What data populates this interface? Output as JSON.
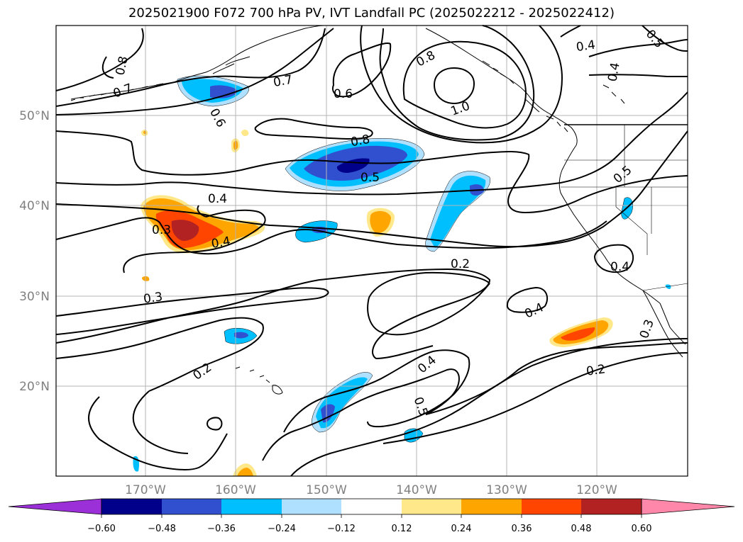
{
  "title": "2025021900 F072 700 hPa PV, IVT Landfall PC (2025022212 - 2025022412)",
  "lat_labels": [
    "50°N",
    "40°N",
    "30°N",
    "20°N"
  ],
  "lon_labels": [
    "170°W",
    "160°W",
    "150°W",
    "140°W",
    "130°W",
    "120°W"
  ],
  "contour_labels": [
    "0.8",
    "0.7",
    "0.6",
    "0.6",
    "0.7",
    "0.8",
    "1.0",
    "0.4",
    "0.5",
    "0.4",
    "0.8",
    "0.5",
    "0.5",
    "0.4",
    "0.3",
    "0.4",
    "0.2",
    "0.4",
    "0.4",
    "0.3",
    "0.3",
    "0.2",
    "0.4",
    "0.5",
    "0.2"
  ],
  "colorbar": {
    "ticks": [
      "−0.60",
      "−0.48",
      "−0.36",
      "−0.24",
      "−0.12",
      "0.12",
      "0.24",
      "0.36",
      "0.48",
      "0.60"
    ],
    "colors": [
      "#9b30d9",
      "#00008b",
      "#3050d0",
      "#00bfff",
      "#b0e0ff",
      "#ffffff",
      "#ffe88a",
      "#ffa500",
      "#ff4500",
      "#b22222",
      "#ff88aa"
    ]
  },
  "palette": {
    "neg_light": "#b0e0ff",
    "neg_cyan": "#00bfff",
    "neg_blue": "#3050d0",
    "neg_navy": "#00008b",
    "pos_yellow": "#ffe88a",
    "pos_orange": "#ffa500",
    "pos_red": "#ff4500",
    "pos_dark": "#b22222"
  }
}
